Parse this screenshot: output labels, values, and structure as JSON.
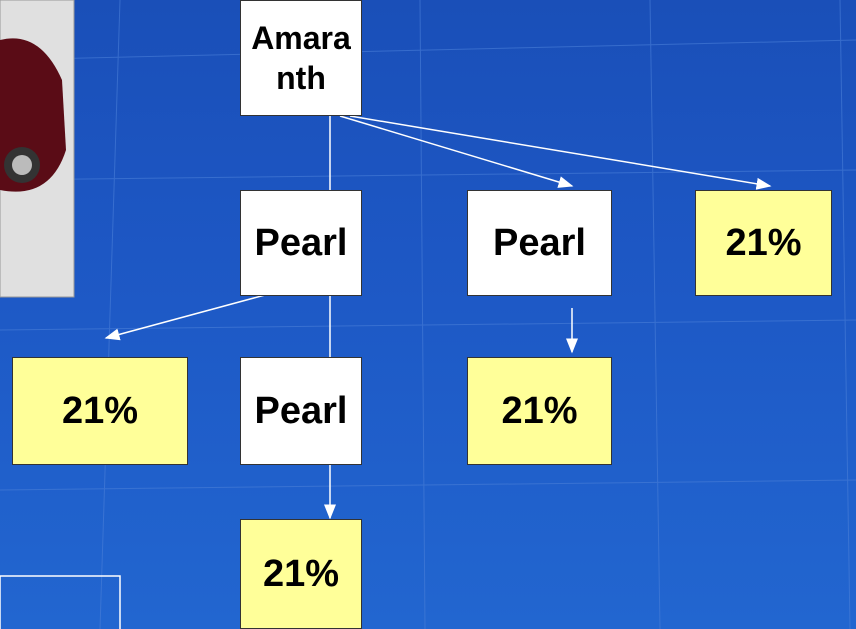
{
  "nodes": [
    {
      "lines": [
        "Amara",
        "nth"
      ]
    },
    {
      "label": "Pearl"
    },
    {
      "label": "Pearl"
    },
    {
      "label": "21%"
    },
    {
      "label": "21%"
    },
    {
      "label": "Pearl"
    },
    {
      "label": "21%"
    },
    {
      "label": "21%"
    }
  ]
}
